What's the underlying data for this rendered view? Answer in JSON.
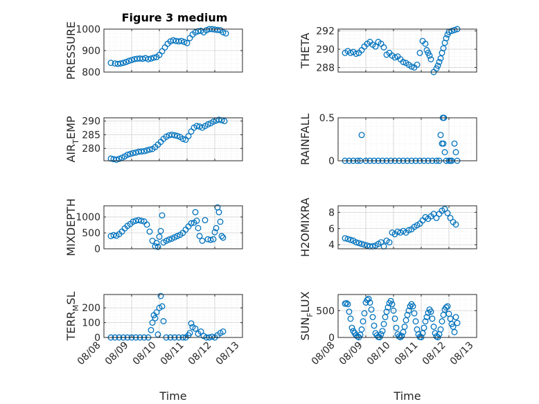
{
  "figure": {
    "title": "Figure 3 medium"
  },
  "colors": {
    "marker": "#0072BD",
    "axis": "#262626",
    "grid": "#d0d0d0"
  },
  "chart_data": [
    {
      "type": "scatter",
      "key": "pressure",
      "title": "Figure 3 medium",
      "ylabel": "PRESSURE",
      "ylabel_sub": null,
      "xlabel": "",
      "ylim": [
        800,
        1000
      ],
      "yticks": [
        800,
        900,
        1000
      ],
      "yticklabels": [
        "800",
        "900",
        "1000"
      ],
      "xlim": [
        0,
        5
      ],
      "xticks": [
        0,
        1,
        2,
        3,
        4,
        5
      ],
      "xticklabels": [],
      "grid": true,
      "minor_grid": true,
      "x": [
        0.25,
        0.4,
        0.5,
        0.6,
        0.7,
        0.8,
        0.9,
        1.0,
        1.1,
        1.2,
        1.3,
        1.4,
        1.5,
        1.6,
        1.7,
        1.8,
        1.9,
        2.0,
        2.1,
        2.2,
        2.3,
        2.4,
        2.5,
        2.6,
        2.7,
        2.8,
        2.9,
        3.0,
        3.1,
        3.2,
        3.3,
        3.4,
        3.5,
        3.6,
        3.7,
        3.8,
        3.9,
        4.0,
        4.1,
        4.2,
        4.3,
        4.4
      ],
      "y": [
        843,
        840,
        838,
        840,
        843,
        847,
        852,
        856,
        860,
        862,
        863,
        862,
        865,
        860,
        863,
        867,
        870,
        880,
        897,
        915,
        932,
        943,
        948,
        945,
        943,
        945,
        940,
        935,
        958,
        975,
        985,
        990,
        992,
        985,
        995,
        1000,
        1000,
        998,
        996,
        995,
        985,
        980
      ]
    },
    {
      "type": "scatter",
      "key": "theta",
      "ylabel": "THETA",
      "ylabel_sub": null,
      "xlabel": "",
      "ylim": [
        287.5,
        292.2
      ],
      "yticks": [
        288,
        290,
        292
      ],
      "yticklabels": [
        "288",
        "290",
        "292"
      ],
      "xlim": [
        0,
        5
      ],
      "xticks": [
        0,
        1,
        2,
        3,
        4,
        5
      ],
      "xticklabels": [],
      "grid": true,
      "minor_grid": true,
      "x": [
        0.25,
        0.35,
        0.45,
        0.55,
        0.65,
        0.75,
        0.85,
        0.95,
        1.05,
        1.15,
        1.25,
        1.35,
        1.45,
        1.55,
        1.65,
        1.75,
        1.85,
        1.95,
        2.05,
        2.15,
        2.25,
        2.35,
        2.45,
        2.55,
        2.65,
        2.75,
        2.85,
        2.95,
        3.05,
        3.15,
        3.2,
        3.25,
        3.3,
        3.35,
        3.45,
        3.55,
        3.6,
        3.65,
        3.7,
        3.75,
        3.8,
        3.85,
        3.9,
        3.95,
        4.0,
        4.1,
        4.2,
        4.3
      ],
      "y": [
        289.6,
        289.8,
        289.6,
        289.7,
        289.5,
        289.6,
        289.9,
        290.3,
        290.6,
        290.8,
        290.5,
        290.3,
        290.8,
        290.6,
        290.2,
        289.4,
        289.6,
        289.3,
        289.1,
        289.2,
        288.9,
        288.6,
        288.5,
        288.3,
        288.1,
        288.0,
        288.3,
        289.6,
        290.9,
        290.6,
        289.9,
        289.6,
        289.3,
        288.9,
        287.5,
        287.9,
        288.2,
        288.6,
        289.0,
        289.6,
        290.1,
        290.7,
        291.2,
        291.6,
        291.9,
        292.0,
        292.1,
        292.2
      ]
    },
    {
      "type": "scatter",
      "key": "air_temp",
      "ylabel": "AIR",
      "ylabel_sub": "T",
      "ylabel_tail": "EMP",
      "xlabel": "",
      "ylim": [
        275.5,
        291.2
      ],
      "yticks": [
        280,
        285,
        290
      ],
      "yticklabels": [
        "280",
        "285",
        "290"
      ],
      "xlim": [
        0,
        5
      ],
      "xticks": [
        0,
        1,
        2,
        3,
        4,
        5
      ],
      "xticklabels": [],
      "grid": true,
      "minor_grid": true,
      "x": [
        0.25,
        0.35,
        0.45,
        0.55,
        0.65,
        0.75,
        0.85,
        0.95,
        1.05,
        1.15,
        1.25,
        1.35,
        1.45,
        1.55,
        1.65,
        1.75,
        1.85,
        1.95,
        2.05,
        2.15,
        2.25,
        2.35,
        2.45,
        2.55,
        2.65,
        2.75,
        2.85,
        2.95,
        3.05,
        3.15,
        3.25,
        3.35,
        3.45,
        3.55,
        3.65,
        3.75,
        3.85,
        3.95,
        4.05,
        4.15,
        4.25,
        4.35
      ],
      "y": [
        276.3,
        276.1,
        275.9,
        276.2,
        276.6,
        277.1,
        277.7,
        278.0,
        278.3,
        278.5,
        278.8,
        278.9,
        279.0,
        279.3,
        279.6,
        279.8,
        280.5,
        281.4,
        282.4,
        283.5,
        284.3,
        284.8,
        285.0,
        284.8,
        284.6,
        284.2,
        283.5,
        283.2,
        284.5,
        286.2,
        287.6,
        288.2,
        288.0,
        287.6,
        288.2,
        288.8,
        289.2,
        289.8,
        290.2,
        290.5,
        290.3,
        290.0
      ]
    },
    {
      "type": "scatter",
      "key": "rainfall",
      "ylabel": "RAINFALL",
      "ylabel_sub": null,
      "xlabel": "",
      "ylim": [
        0,
        0.5
      ],
      "yticks": [
        0,
        0.5
      ],
      "yticklabels": [
        "0",
        "0.5"
      ],
      "xlim": [
        0,
        5
      ],
      "xticks": [
        0,
        1,
        2,
        3,
        4,
        5
      ],
      "xticklabels": [],
      "grid": true,
      "minor_grid": true,
      "x": [
        0.25,
        0.4,
        0.55,
        0.7,
        0.8,
        0.85,
        1.0,
        1.15,
        1.3,
        1.45,
        1.6,
        1.75,
        1.9,
        2.05,
        2.2,
        2.35,
        2.5,
        2.65,
        2.8,
        2.95,
        3.1,
        3.25,
        3.4,
        3.55,
        3.65,
        3.7,
        3.75,
        3.78,
        3.8,
        3.82,
        3.85,
        3.9,
        4.0,
        4.05,
        4.1,
        4.2,
        4.25,
        4.3
      ],
      "y": [
        0,
        0,
        0,
        0,
        0,
        0.3,
        0,
        0,
        0,
        0,
        0,
        0,
        0,
        0,
        0,
        0,
        0,
        0,
        0,
        0,
        0,
        0,
        0,
        0,
        0,
        0.3,
        0.2,
        0.5,
        0.2,
        0.5,
        0.1,
        0,
        0,
        0,
        0,
        0.2,
        0.1,
        0
      ]
    },
    {
      "type": "scatter",
      "key": "mixdepth",
      "ylabel": "MIXDEPTH",
      "ylabel_sub": null,
      "xlabel": "",
      "ylim": [
        0,
        1350
      ],
      "yticks": [
        0,
        500,
        1000
      ],
      "yticklabels": [
        "0",
        "500",
        "1000"
      ],
      "xlim": [
        0,
        5
      ],
      "xticks": [
        0,
        1,
        2,
        3,
        4,
        5
      ],
      "xticklabels": [],
      "grid": true,
      "minor_grid": true,
      "x": [
        0.25,
        0.35,
        0.45,
        0.55,
        0.65,
        0.75,
        0.85,
        0.95,
        1.05,
        1.15,
        1.25,
        1.35,
        1.45,
        1.55,
        1.65,
        1.75,
        1.85,
        1.9,
        1.95,
        2.0,
        2.05,
        2.1,
        2.15,
        2.25,
        2.35,
        2.45,
        2.55,
        2.65,
        2.75,
        2.85,
        2.95,
        3.05,
        3.15,
        3.25,
        3.3,
        3.35,
        3.4,
        3.45,
        3.55,
        3.65,
        3.75,
        3.85,
        3.95,
        4.0,
        4.05,
        4.1,
        4.15,
        4.2,
        4.25,
        4.3
      ],
      "y": [
        400,
        430,
        410,
        460,
        540,
        640,
        720,
        780,
        850,
        880,
        900,
        880,
        860,
        760,
        540,
        250,
        80,
        180,
        60,
        380,
        560,
        1050,
        200,
        250,
        290,
        320,
        360,
        400,
        440,
        500,
        600,
        700,
        800,
        820,
        1150,
        880,
        650,
        400,
        250,
        900,
        300,
        280,
        300,
        520,
        650,
        1300,
        1150,
        850,
        400,
        350
      ]
    },
    {
      "type": "scatter",
      "key": "h2omixra",
      "ylabel": "H2OMIXRA",
      "ylabel_sub": null,
      "xlabel": "",
      "ylim": [
        3.5,
        8.8
      ],
      "yticks": [
        4,
        6,
        8
      ],
      "yticklabels": [
        "4",
        "6",
        "8"
      ],
      "xlim": [
        0,
        5
      ],
      "xticks": [
        0,
        1,
        2,
        3,
        4,
        5
      ],
      "xticklabels": [],
      "grid": true,
      "minor_grid": true,
      "x": [
        0.25,
        0.35,
        0.45,
        0.55,
        0.65,
        0.75,
        0.85,
        0.95,
        1.05,
        1.15,
        1.25,
        1.35,
        1.45,
        1.55,
        1.65,
        1.75,
        1.85,
        1.95,
        2.05,
        2.15,
        2.25,
        2.35,
        2.45,
        2.55,
        2.65,
        2.75,
        2.85,
        2.95,
        3.05,
        3.15,
        3.25,
        3.35,
        3.45,
        3.55,
        3.65,
        3.75,
        3.85,
        3.95,
        4.05,
        4.15,
        4.25
      ],
      "y": [
        4.8,
        4.7,
        4.6,
        4.5,
        4.3,
        4.2,
        4.1,
        4.0,
        3.9,
        3.8,
        3.8,
        3.9,
        4.1,
        4.3,
        3.8,
        4.5,
        4.3,
        5.5,
        5.3,
        5.6,
        5.5,
        5.7,
        5.5,
        5.8,
        5.9,
        6.2,
        6.4,
        6.6,
        7.0,
        7.4,
        7.2,
        7.5,
        7.8,
        7.3,
        7.8,
        8.2,
        8.4,
        7.9,
        7.3,
        6.8,
        6.5
      ]
    },
    {
      "type": "scatter",
      "key": "terr_msl",
      "ylabel": "TERR",
      "ylabel_sub": "M",
      "ylabel_tail": "SL",
      "xlabel": "Time",
      "ylim": [
        0,
        290
      ],
      "yticks": [
        0,
        100,
        200
      ],
      "yticklabels": [
        "0",
        "100",
        "200"
      ],
      "xlim": [
        0,
        5
      ],
      "xticks": [
        0,
        1,
        2,
        3,
        4,
        5
      ],
      "xticklabels": [
        "08/08",
        "08/09",
        "08/10",
        "08/11",
        "08/12",
        "08/13"
      ],
      "grid": true,
      "minor_grid": true,
      "x": [
        0.25,
        0.4,
        0.55,
        0.7,
        0.85,
        1.0,
        1.15,
        1.3,
        1.45,
        1.6,
        1.7,
        1.75,
        1.8,
        1.85,
        1.9,
        1.95,
        2.0,
        2.05,
        2.1,
        2.15,
        2.25,
        2.4,
        2.55,
        2.7,
        2.85,
        2.95,
        3.05,
        3.1,
        3.15,
        3.2,
        3.3,
        3.4,
        3.5,
        3.6,
        3.7,
        3.8,
        3.9,
        4.0,
        4.1,
        4.2,
        4.3
      ],
      "y": [
        0,
        0,
        0,
        0,
        0,
        0,
        0,
        0,
        0,
        0,
        50,
        100,
        150,
        130,
        170,
        20,
        200,
        280,
        210,
        110,
        0,
        0,
        0,
        0,
        0,
        0,
        15,
        30,
        95,
        70,
        60,
        25,
        40,
        10,
        0,
        0,
        5,
        0,
        15,
        30,
        40
      ]
    },
    {
      "type": "scatter",
      "key": "sun_flux",
      "ylabel": "SUN",
      "ylabel_sub": "F",
      "ylabel_tail": "LUX",
      "xlabel": "Time",
      "ylim": [
        0,
        800
      ],
      "yticks": [
        0,
        500
      ],
      "yticklabels": [
        "0",
        "500"
      ],
      "xlim": [
        0,
        5
      ],
      "xticks": [
        0,
        1,
        2,
        3,
        4,
        5
      ],
      "xticklabels": [
        "08/08",
        "08/09",
        "08/10",
        "08/11",
        "08/12",
        "08/13"
      ],
      "grid": true,
      "minor_grid": true,
      "x": [
        0.25,
        0.3,
        0.35,
        0.4,
        0.45,
        0.5,
        0.55,
        0.6,
        0.65,
        0.7,
        0.75,
        0.8,
        0.85,
        0.9,
        0.95,
        1.0,
        1.05,
        1.1,
        1.15,
        1.2,
        1.25,
        1.3,
        1.35,
        1.4,
        1.45,
        1.5,
        1.55,
        1.6,
        1.65,
        1.7,
        1.75,
        1.8,
        1.85,
        1.9,
        1.95,
        2.0,
        2.05,
        2.1,
        2.15,
        2.2,
        2.25,
        2.3,
        2.35,
        2.4,
        2.45,
        2.5,
        2.55,
        2.6,
        2.65,
        2.7,
        2.75,
        2.8,
        2.85,
        2.9,
        2.95,
        3.0,
        3.05,
        3.1,
        3.15,
        3.2,
        3.25,
        3.3,
        3.35,
        3.4,
        3.45,
        3.5,
        3.55,
        3.6,
        3.65,
        3.7,
        3.75,
        3.8,
        3.85,
        3.9,
        3.95,
        4.0,
        4.05,
        4.1,
        4.15,
        4.2,
        4.25,
        4.3
      ],
      "y": [
        630,
        640,
        620,
        480,
        350,
        180,
        120,
        80,
        40,
        20,
        5,
        50,
        150,
        300,
        450,
        650,
        700,
        720,
        650,
        520,
        380,
        220,
        80,
        40,
        10,
        5,
        60,
        120,
        250,
        380,
        480,
        560,
        640,
        680,
        620,
        500,
        350,
        180,
        60,
        20,
        5,
        30,
        100,
        200,
        320,
        420,
        500,
        580,
        620,
        580,
        450,
        300,
        150,
        60,
        10,
        5,
        80,
        180,
        300,
        380,
        460,
        520,
        480,
        350,
        200,
        80,
        20,
        5,
        60,
        150,
        300,
        420,
        520,
        560,
        580,
        440,
        350,
        250,
        200,
        100,
        380,
        270
      ]
    }
  ]
}
